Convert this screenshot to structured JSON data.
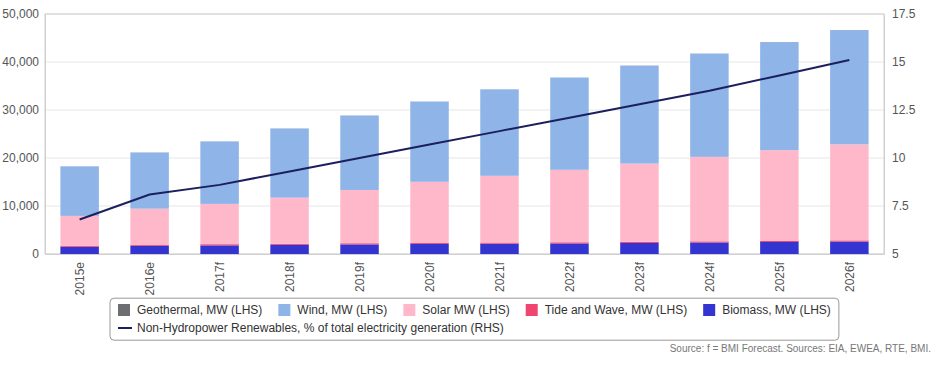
{
  "chart_data": {
    "type": "bar",
    "stacked": true,
    "grid": true,
    "legend": "bottom",
    "categories": [
      "2015e",
      "2016e",
      "2017f",
      "2018f",
      "2019f",
      "2020f",
      "2021f",
      "2022f",
      "2023f",
      "2024f",
      "2025f",
      "2026f"
    ],
    "series": [
      {
        "name": "Geothermal, MW (LHS)",
        "color": "#6d6e71",
        "values": [
          20,
          20,
          20,
          20,
          20,
          20,
          20,
          20,
          20,
          20,
          20,
          20
        ]
      },
      {
        "name": "Wind, MW (LHS)",
        "color": "#8eb4e8",
        "values": [
          10300,
          11700,
          13000,
          14400,
          15500,
          16700,
          18000,
          19200,
          20400,
          21500,
          22500,
          23800
        ]
      },
      {
        "name": "Solar MW (LHS)",
        "color": "#ffb8ca",
        "values": [
          6200,
          7500,
          8400,
          9600,
          11100,
          12700,
          13900,
          15100,
          16300,
          17600,
          18900,
          20000
        ]
      },
      {
        "name": "Tide and Wave, MW (LHS)",
        "color": "#f0456f",
        "values": [
          240,
          240,
          240,
          240,
          240,
          240,
          240,
          240,
          240,
          240,
          240,
          240
        ]
      },
      {
        "name": "Biomass, MW (LHS)",
        "color": "#3434d0",
        "values": [
          1500,
          1700,
          1800,
          1900,
          2000,
          2100,
          2150,
          2200,
          2300,
          2400,
          2500,
          2600
        ]
      },
      {
        "name": "Non-Hydropower Renewables, % of total electricity generation (RHS)",
        "color": "#1b1f5e",
        "type": "line",
        "axis": "y2",
        "line_style": "solid",
        "values": [
          6.8,
          8.1,
          8.6,
          9.3,
          10.0,
          10.7,
          11.4,
          12.1,
          12.8,
          13.5,
          14.3,
          15.1
        ]
      }
    ],
    "ylim": [
      0,
      50000
    ],
    "yticks": [
      0,
      {
        "value": 10000,
        "label": "10,000"
      },
      {
        "value": 20000,
        "label": "20,000"
      },
      {
        "value": 30000,
        "label": "30,000"
      },
      {
        "value": 40000,
        "label": "40,000"
      },
      {
        "value": 50000,
        "label": "50,000"
      }
    ],
    "y2lim": [
      5,
      17.5
    ],
    "y2ticks": [
      5,
      7.5,
      10,
      12.5,
      15,
      17.5
    ],
    "source": "Source: f = BMI Forecast. Sources: EIA, EWEA, RTE, BMI."
  }
}
